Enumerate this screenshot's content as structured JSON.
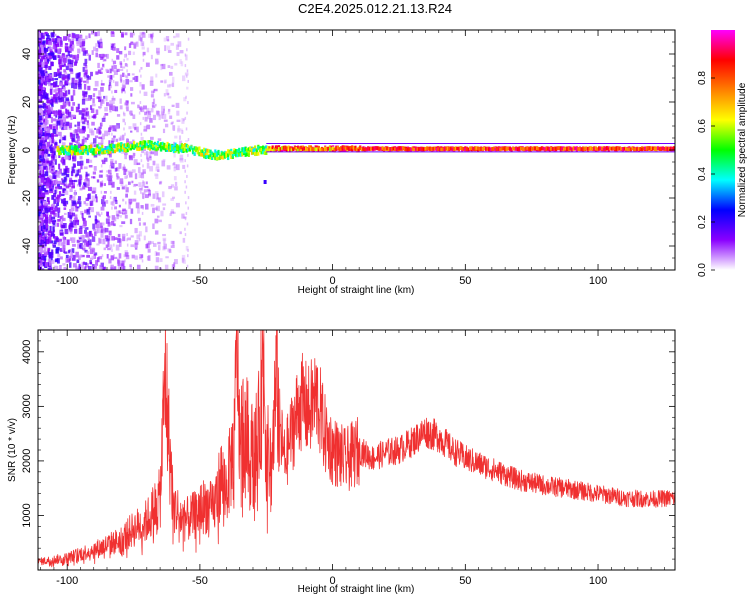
{
  "title": "C2E4.2025.012.21.13.R24",
  "chart_data": [
    {
      "type": "heatmap",
      "panel": "spectrogram",
      "xlabel": "Height of straight line (km)",
      "ylabel": "Frequency (Hz)",
      "xlim": [
        -111,
        129
      ],
      "ylim": [
        -50,
        50
      ],
      "xticks": [
        -100,
        -50,
        0,
        50,
        100
      ],
      "yticks": [
        -40,
        -20,
        0,
        20,
        40
      ],
      "colorbar": {
        "label": "Normalized spectral amplitude",
        "range": [
          0,
          1
        ],
        "ticks": [
          0.0,
          0.2,
          0.4,
          0.6,
          0.8
        ],
        "colors": [
          "#ffffff",
          "#8a00ff",
          "#0000ff",
          "#00ffff",
          "#00ff00",
          "#ffff00",
          "#ff8000",
          "#ff0000",
          "#ff00ff"
        ]
      },
      "ridge": {
        "x": [
          -104,
          -90,
          -80,
          -70,
          -62,
          -55,
          -48,
          -42,
          -35,
          -28,
          -22,
          -15,
          -8,
          0,
          10,
          50,
          100,
          129
        ],
        "freq": [
          0.0,
          0.0,
          1.0,
          2.0,
          1.0,
          0.5,
          -1.5,
          -2.5,
          -1.0,
          0.0,
          0.5,
          0.5,
          0.5,
          0.5,
          0.5,
          0.5,
          0.5,
          0.5
        ]
      },
      "noise_x_range": [
        -111,
        -55
      ]
    },
    {
      "type": "line",
      "panel": "snr",
      "xlabel": "Height of straight line (km)",
      "ylabel": "SNR (10 * v/v)",
      "xlim": [
        -111,
        129
      ],
      "ylim": [
        0,
        4400
      ],
      "xticks": [
        -100,
        -50,
        0,
        50,
        100
      ],
      "yticks": [
        1000,
        2000,
        3000,
        4000
      ],
      "color": "#f03030",
      "series": [
        {
          "x": [
            -111,
            -100,
            -95,
            -88,
            -80,
            -75,
            -70,
            -65,
            -63,
            -62,
            -60,
            -56,
            -52,
            -48,
            -45,
            -42,
            -40,
            -37,
            -36,
            -35,
            -33,
            -30,
            -28,
            -26,
            -25,
            -23,
            -21,
            -20,
            -18,
            -15,
            -12,
            -9,
            -6,
            -3,
            0,
            5,
            10,
            15,
            20,
            25,
            30,
            35,
            37,
            40,
            45,
            50,
            60,
            70,
            80,
            90,
            100,
            110,
            120,
            129
          ],
          "y": [
            150,
            220,
            300,
            400,
            550,
            750,
            900,
            1300,
            3700,
            2600,
            1200,
            900,
            1000,
            1200,
            1100,
            1700,
            1500,
            2300,
            4300,
            2500,
            2600,
            2100,
            2400,
            3900,
            2200,
            1900,
            3600,
            2600,
            2000,
            2600,
            3100,
            2900,
            3200,
            2500,
            2200,
            2000,
            2200,
            2050,
            2150,
            2200,
            2350,
            2550,
            2500,
            2450,
            2200,
            2050,
            1850,
            1650,
            1550,
            1480,
            1400,
            1320,
            1300,
            1320
          ]
        }
      ]
    }
  ]
}
